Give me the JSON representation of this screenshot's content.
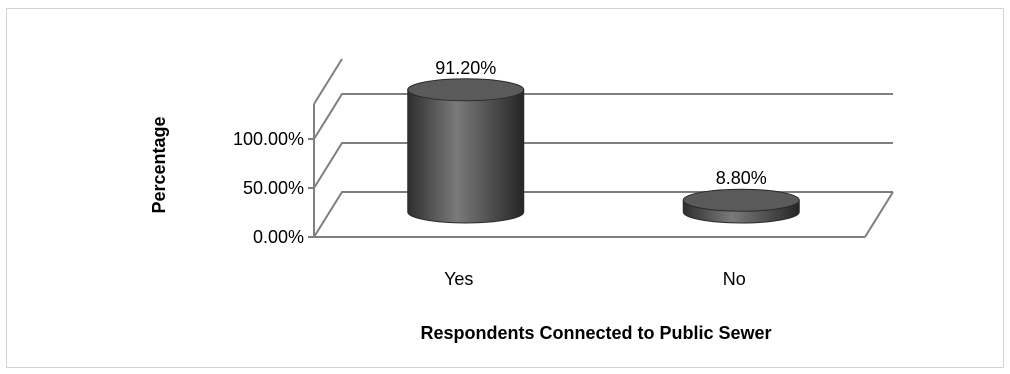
{
  "chart_data": {
    "type": "bar",
    "style": "3d-cylinder",
    "categories": [
      "Yes",
      "No"
    ],
    "values": [
      91.2,
      8.8
    ],
    "data_labels": [
      "91.20%",
      "8.80%"
    ],
    "title": "",
    "xlabel": "Respondents Connected to Public Sewer",
    "ylabel": "Percentage",
    "ylim": [
      0,
      100
    ],
    "y_ticks": [
      {
        "value": 0,
        "label": "0.00%"
      },
      {
        "value": 50,
        "label": "50.00%"
      },
      {
        "value": 100,
        "label": "100.00%"
      }
    ],
    "grid": true,
    "legend": "none",
    "bar_color": "#555555"
  }
}
